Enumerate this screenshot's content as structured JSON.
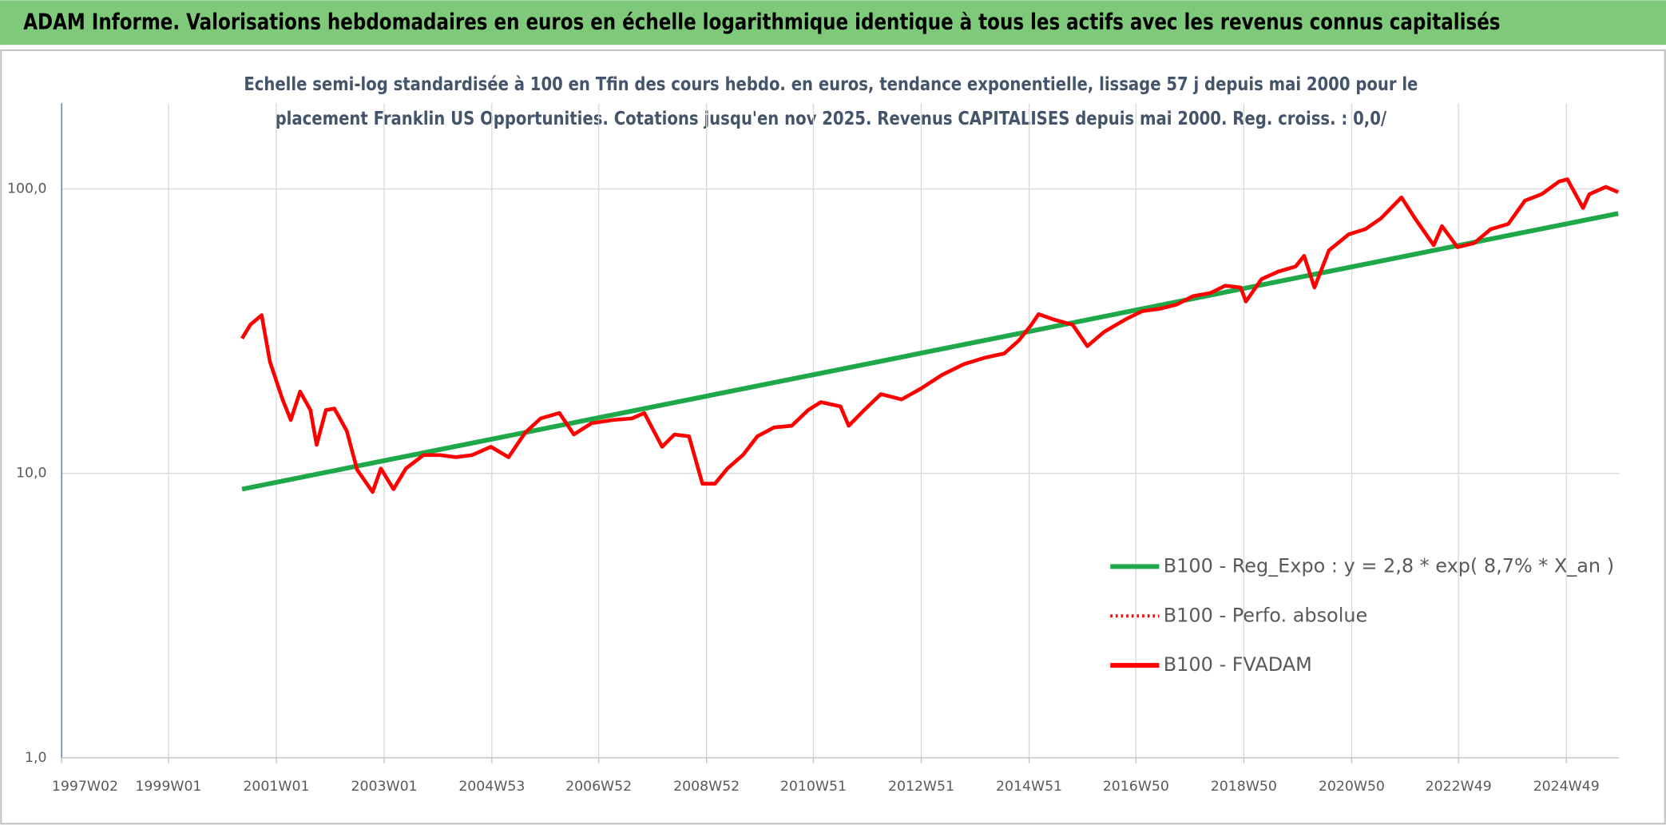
{
  "chart_data": {
    "type": "line",
    "title": "ADAM Informe. Valorisations hebdomadaires en euros en échelle logarithmique identique à tous les actifs avec les revenus connus capitalisés",
    "subtitle": [
      "Echelle semi-log standardisée à 100 en Tfin des cours hebdo. en euros, tendance exponentielle, lissage 57 j depuis mai 2000 pour le",
      "placement Franklin US Opportunities. Cotations jusqu'en nov 2025. Revenus CAPITALISES depuis mai 2000. Reg. croiss. : 0,0/"
    ],
    "log_scale_y": true,
    "grid": true,
    "legend": "right",
    "xlim": [
      "1997W02",
      "2025W48"
    ],
    "xticks": [
      "1997W02",
      "1999W01",
      "2001W01",
      "2003W01",
      "2004W53",
      "2006W52",
      "2008W52",
      "2010W51",
      "2012W51",
      "2014W51",
      "2016W50",
      "2018W50",
      "2020W50",
      "2022W49",
      "2024W49"
    ],
    "ylim": [
      1,
      200
    ],
    "yticks": [
      {
        "value": 1,
        "label": "1,0"
      },
      {
        "value": 10,
        "label": "10,0"
      },
      {
        "value": 100,
        "label": "100,0"
      }
    ],
    "series": [
      {
        "name": "B100 - Reg_Expo : y = 2,8 * exp( 8,7% *  X_an )",
        "color": "#1ea84a",
        "style": "solid",
        "x": [
          "2000W20",
          "2025W47"
        ],
        "values": [
          8.8,
          82
        ]
      },
      {
        "name": "B100 - Perfo. absolue",
        "color": "#ff0000",
        "style": "dotted",
        "x": [],
        "values": []
      },
      {
        "name": "B100 - FVADAM",
        "color": "#ff0000",
        "style": "solid",
        "x": [
          "2000W20",
          "2000W28",
          "2000W39",
          "2000W47",
          "2001W07",
          "2001W15",
          "2001W24",
          "2001W34",
          "2001W40",
          "2001W49",
          "2002W05",
          "2002W17",
          "2002W27",
          "2002W42",
          "2002W50",
          "2003W10",
          "2003W22",
          "2003W39",
          "2004W03",
          "2004W18",
          "2004W34",
          "2004W52",
          "2005W17",
          "2005W33",
          "2005W48",
          "2006W14",
          "2006W28",
          "2006W45",
          "2007W13",
          "2007W32",
          "2007W44",
          "2008W09",
          "2008W21",
          "2008W35",
          "2008W48",
          "2009W08",
          "2009W20",
          "2009W35",
          "2009W49",
          "2010W13",
          "2010W30",
          "2010W46",
          "2011W06",
          "2011W25",
          "2011W33",
          "2011W48",
          "2012W12",
          "2012W32",
          "2012W51",
          "2013W19",
          "2013W40",
          "2014W08",
          "2014W27",
          "2014W41",
          "2015W01",
          "2015W08",
          "2015W22",
          "2015W41",
          "2016W03",
          "2016W19",
          "2016W40",
          "2017W04",
          "2017W21",
          "2017W37",
          "2018W01",
          "2018W18",
          "2018W32",
          "2018W47",
          "2018W52",
          "2019W15",
          "2019W31",
          "2019W48",
          "2020W04",
          "2020W14",
          "2020W28",
          "2020W47",
          "2021W11",
          "2021W26",
          "2021W46",
          "2022W07",
          "2022W25",
          "2022W33",
          "2022W48",
          "2023W12",
          "2023W28",
          "2023W45",
          "2024W09",
          "2024W25",
          "2024W42",
          "2024W50",
          "2025W13",
          "2025W19",
          "2025W35",
          "2025W47"
        ],
        "values": [
          29.8,
          33.3,
          36.0,
          24.7,
          18.2,
          15.4,
          19.4,
          16.7,
          12.6,
          16.7,
          16.9,
          14.1,
          10.3,
          8.6,
          10.4,
          8.8,
          10.4,
          11.6,
          11.6,
          11.4,
          11.6,
          12.4,
          11.4,
          13.9,
          15.6,
          16.3,
          13.7,
          15.0,
          15.4,
          15.6,
          16.3,
          12.4,
          13.7,
          13.5,
          9.2,
          9.2,
          10.4,
          11.6,
          13.5,
          14.5,
          14.7,
          16.7,
          17.8,
          17.2,
          14.7,
          16.7,
          19.0,
          18.2,
          19.9,
          22.2,
          24.2,
          25.5,
          26.4,
          29.3,
          33.3,
          36.3,
          34.8,
          33.3,
          28.0,
          31.4,
          34.8,
          37.2,
          37.9,
          39.2,
          42.0,
          43.1,
          45.7,
          45.0,
          40.2,
          48.2,
          51.2,
          53.4,
          58.2,
          45.0,
          60.8,
          69.2,
          72.2,
          78.7,
          93.4,
          78.7,
          63.4,
          74.0,
          62.4,
          64.5,
          72.2,
          75.3,
          91.0,
          95.8,
          106.2,
          108.1,
          85.7,
          95.8,
          101.7,
          97.4
        ]
      }
    ]
  }
}
